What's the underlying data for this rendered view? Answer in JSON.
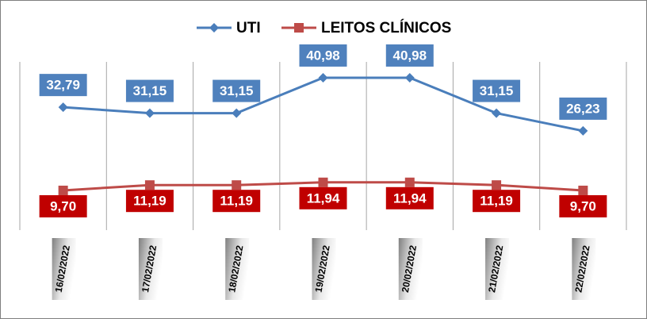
{
  "chart_data": {
    "type": "line",
    "categories": [
      "16/02/2022",
      "17/02/2022",
      "18/02/2022",
      "19/02/2022",
      "20/02/2022",
      "21/02/2022",
      "22/02/2022"
    ],
    "series": [
      {
        "name": "UTI",
        "color": "#4a7ebb",
        "label_color": "#4f81bd",
        "marker": "diamond",
        "values": [
          32.79,
          31.15,
          31.15,
          40.98,
          40.98,
          31.15,
          26.23
        ],
        "value_labels": [
          "32,79",
          "31,15",
          "31,15",
          "40,98",
          "40,98",
          "31,15",
          "26,23"
        ]
      },
      {
        "name": "LEITOS CLÍNICOS",
        "color": "#be4b48",
        "label_color": "#c00000",
        "marker": "square",
        "values": [
          9.7,
          11.19,
          11.19,
          11.94,
          11.94,
          11.19,
          9.7
        ],
        "value_labels": [
          "9,70",
          "11,19",
          "11,19",
          "11,94",
          "11,94",
          "11,19",
          "9,70"
        ]
      }
    ],
    "ylim": [
      0,
      50
    ],
    "grid": true,
    "legend": "top"
  }
}
